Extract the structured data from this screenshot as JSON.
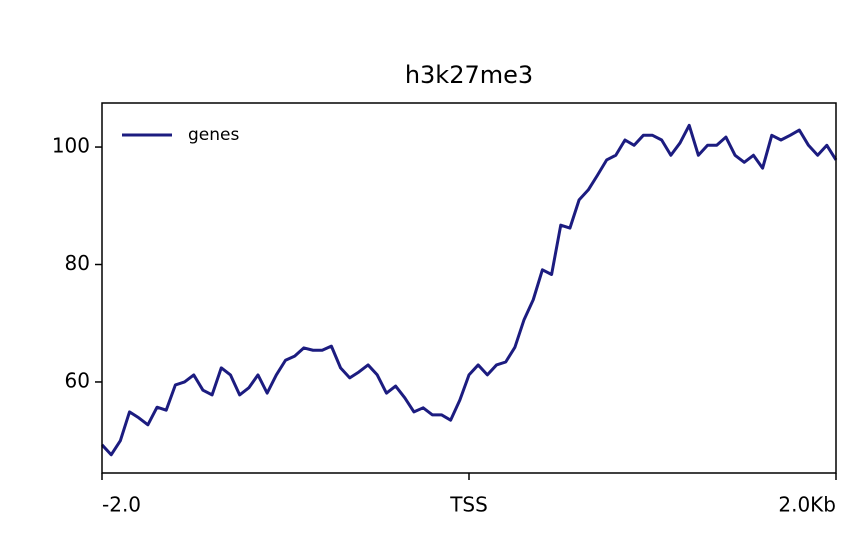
{
  "chart_data": {
    "type": "line",
    "title": "h3k27me3",
    "x": [
      -2,
      -1.95,
      -1.9,
      -1.85,
      -1.8,
      -1.75,
      -1.7,
      -1.65,
      -1.6,
      -1.55,
      -1.5,
      -1.45,
      -1.4,
      -1.35,
      -1.3,
      -1.25,
      -1.2,
      -1.15,
      -1.1,
      -1.05,
      -1,
      -0.95,
      -0.9,
      -0.85,
      -0.8,
      -0.75,
      -0.7,
      -0.65,
      -0.6,
      -0.55,
      -0.5,
      -0.45,
      -0.4,
      -0.35,
      -0.3,
      -0.25,
      -0.2,
      -0.15,
      -0.1,
      -0.05,
      0,
      0.05,
      0.1,
      0.15,
      0.2,
      0.25,
      0.3,
      0.35,
      0.4,
      0.45,
      0.5,
      0.55,
      0.6,
      0.65,
      0.7,
      0.75,
      0.8,
      0.85,
      0.9,
      0.95,
      1,
      1.05,
      1.1,
      1.15,
      1.2,
      1.25,
      1.3,
      1.35,
      1.4,
      1.45,
      1.5,
      1.55,
      1.6,
      1.65,
      1.7,
      1.75,
      1.8,
      1.85,
      1.9,
      1.95,
      2
    ],
    "series": [
      {
        "name": "genes",
        "color": "#1c1c80",
        "values": [
          49.3,
          47.6,
          50,
          54.9,
          53.9,
          52.7,
          55.7,
          55.2,
          59.5,
          60,
          61.2,
          58.6,
          57.8,
          62.4,
          61.2,
          57.8,
          59,
          61.2,
          58.1,
          61.2,
          63.7,
          64.4,
          65.8,
          65.4,
          65.4,
          66.1,
          62.4,
          60.7,
          61.7,
          62.9,
          61.2,
          58.1,
          59.3,
          57.3,
          54.9,
          55.6,
          54.4,
          54.4,
          53.5,
          56.9,
          61.2,
          62.9,
          61.2,
          62.9,
          63.4,
          65.9,
          70.6,
          74,
          79.1,
          78.3,
          86.7,
          86.2,
          91,
          92.7,
          95.2,
          97.8,
          98.6,
          101.2,
          100.3,
          102,
          102,
          101.2,
          98.6,
          100.7,
          103.7,
          98.6,
          100.3,
          100.3,
          101.7,
          98.6,
          97.4,
          98.6,
          96.4,
          102,
          101.2,
          102,
          102.9,
          100.3,
          98.6,
          100.3,
          97.8
        ]
      }
    ],
    "xlim": [
      -2,
      2
    ],
    "xticks": [
      {
        "value": -2,
        "label": "-2.0"
      },
      {
        "value": 0,
        "label": "TSS"
      },
      {
        "value": 2,
        "label": "2.0Kb"
      }
    ],
    "ylim": [
      44.5,
      107.5
    ],
    "yticks": [
      60,
      80,
      100
    ],
    "grid": false,
    "legend": "upper left"
  }
}
